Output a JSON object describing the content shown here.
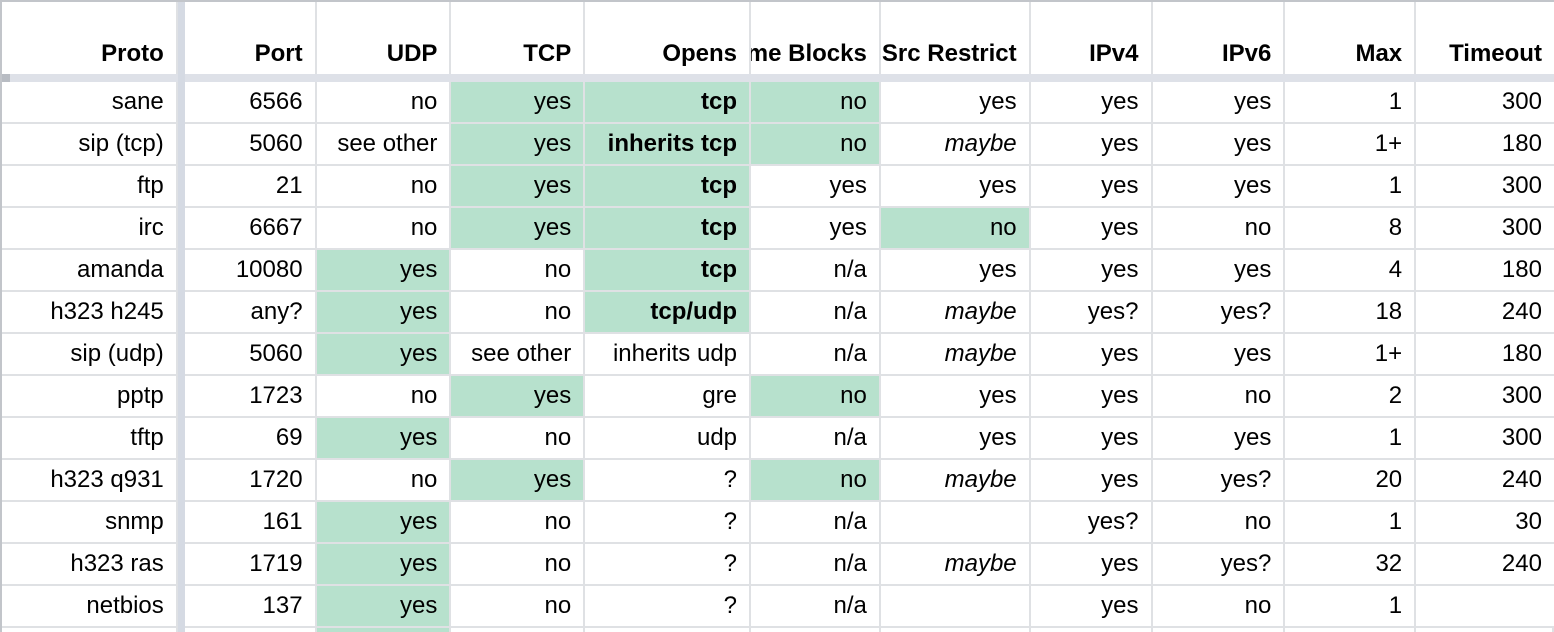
{
  "table": {
    "columns": [
      {
        "key": "proto",
        "label": "Proto"
      },
      {
        "key": "port",
        "label": "Port"
      },
      {
        "key": "udp",
        "label": "UDP"
      },
      {
        "key": "tcp",
        "label": "TCP"
      },
      {
        "key": "opens",
        "label": "Opens"
      },
      {
        "key": "chrome",
        "label": "Chrome Blocks"
      },
      {
        "key": "nfct",
        "label": "NFCT Src Restrict"
      },
      {
        "key": "ipv4",
        "label": "IPv4"
      },
      {
        "key": "ipv6",
        "label": "IPv6"
      },
      {
        "key": "max",
        "label": "Max"
      },
      {
        "key": "timeout",
        "label": "Timeout"
      }
    ],
    "rows": [
      {
        "cells": [
          {
            "t": "sane"
          },
          {
            "t": "6566"
          },
          {
            "t": "no"
          },
          {
            "t": "yes",
            "hl": true
          },
          {
            "t": "tcp",
            "hl": true,
            "b": true
          },
          {
            "t": "no",
            "hl": true
          },
          {
            "t": "yes"
          },
          {
            "t": "yes"
          },
          {
            "t": "yes"
          },
          {
            "t": "1"
          },
          {
            "t": "300"
          }
        ]
      },
      {
        "cells": [
          {
            "t": "sip (tcp)"
          },
          {
            "t": "5060"
          },
          {
            "t": "see other"
          },
          {
            "t": "yes",
            "hl": true
          },
          {
            "t": "inherits tcp",
            "hl": true,
            "b": true
          },
          {
            "t": "no",
            "hl": true
          },
          {
            "t": "maybe",
            "i": true
          },
          {
            "t": "yes"
          },
          {
            "t": "yes"
          },
          {
            "t": "1+"
          },
          {
            "t": "180"
          }
        ]
      },
      {
        "cells": [
          {
            "t": "ftp"
          },
          {
            "t": "21"
          },
          {
            "t": "no"
          },
          {
            "t": "yes",
            "hl": true
          },
          {
            "t": "tcp",
            "hl": true,
            "b": true
          },
          {
            "t": "yes"
          },
          {
            "t": "yes"
          },
          {
            "t": "yes"
          },
          {
            "t": "yes"
          },
          {
            "t": "1"
          },
          {
            "t": "300"
          }
        ]
      },
      {
        "cells": [
          {
            "t": "irc"
          },
          {
            "t": "6667"
          },
          {
            "t": "no"
          },
          {
            "t": "yes",
            "hl": true
          },
          {
            "t": "tcp",
            "hl": true,
            "b": true
          },
          {
            "t": "yes"
          },
          {
            "t": "no",
            "hl": true
          },
          {
            "t": "yes"
          },
          {
            "t": "no"
          },
          {
            "t": "8"
          },
          {
            "t": "300"
          }
        ]
      },
      {
        "cells": [
          {
            "t": "amanda"
          },
          {
            "t": "10080"
          },
          {
            "t": "yes",
            "hl": true
          },
          {
            "t": "no"
          },
          {
            "t": "tcp",
            "hl": true,
            "b": true
          },
          {
            "t": "n/a"
          },
          {
            "t": "yes"
          },
          {
            "t": "yes"
          },
          {
            "t": "yes"
          },
          {
            "t": "4"
          },
          {
            "t": "180"
          }
        ]
      },
      {
        "cells": [
          {
            "t": "h323 h245"
          },
          {
            "t": "any?"
          },
          {
            "t": "yes",
            "hl": true
          },
          {
            "t": "no"
          },
          {
            "t": "tcp/udp",
            "hl": true,
            "b": true
          },
          {
            "t": "n/a"
          },
          {
            "t": "maybe",
            "i": true
          },
          {
            "t": "yes?"
          },
          {
            "t": "yes?"
          },
          {
            "t": "18"
          },
          {
            "t": "240"
          }
        ]
      },
      {
        "cells": [
          {
            "t": "sip (udp)"
          },
          {
            "t": "5060"
          },
          {
            "t": "yes",
            "hl": true
          },
          {
            "t": "see other"
          },
          {
            "t": "inherits udp"
          },
          {
            "t": "n/a"
          },
          {
            "t": "maybe",
            "i": true
          },
          {
            "t": "yes"
          },
          {
            "t": "yes"
          },
          {
            "t": "1+"
          },
          {
            "t": "180"
          }
        ]
      },
      {
        "cells": [
          {
            "t": "pptp"
          },
          {
            "t": "1723"
          },
          {
            "t": "no"
          },
          {
            "t": "yes",
            "hl": true
          },
          {
            "t": "gre"
          },
          {
            "t": "no",
            "hl": true
          },
          {
            "t": "yes"
          },
          {
            "t": "yes"
          },
          {
            "t": "no"
          },
          {
            "t": "2"
          },
          {
            "t": "300"
          }
        ]
      },
      {
        "cells": [
          {
            "t": "tftp"
          },
          {
            "t": "69"
          },
          {
            "t": "yes",
            "hl": true
          },
          {
            "t": "no"
          },
          {
            "t": "udp"
          },
          {
            "t": "n/a"
          },
          {
            "t": "yes"
          },
          {
            "t": "yes"
          },
          {
            "t": "yes"
          },
          {
            "t": "1"
          },
          {
            "t": "300"
          }
        ]
      },
      {
        "cells": [
          {
            "t": "h323 q931"
          },
          {
            "t": "1720"
          },
          {
            "t": "no"
          },
          {
            "t": "yes",
            "hl": true
          },
          {
            "t": "?"
          },
          {
            "t": "no",
            "hl": true
          },
          {
            "t": "maybe",
            "i": true
          },
          {
            "t": "yes"
          },
          {
            "t": "yes?"
          },
          {
            "t": "20"
          },
          {
            "t": "240"
          }
        ]
      },
      {
        "cells": [
          {
            "t": "snmp"
          },
          {
            "t": "161"
          },
          {
            "t": "yes",
            "hl": true
          },
          {
            "t": "no"
          },
          {
            "t": "?"
          },
          {
            "t": "n/a"
          },
          {
            "t": ""
          },
          {
            "t": "yes?"
          },
          {
            "t": "no"
          },
          {
            "t": "1"
          },
          {
            "t": "30"
          }
        ]
      },
      {
        "cells": [
          {
            "t": "h323 ras"
          },
          {
            "t": "1719"
          },
          {
            "t": "yes",
            "hl": true
          },
          {
            "t": "no"
          },
          {
            "t": "?"
          },
          {
            "t": "n/a"
          },
          {
            "t": "maybe",
            "i": true
          },
          {
            "t": "yes"
          },
          {
            "t": "yes?"
          },
          {
            "t": "32"
          },
          {
            "t": "240"
          }
        ]
      },
      {
        "cells": [
          {
            "t": "netbios"
          },
          {
            "t": "137"
          },
          {
            "t": "yes",
            "hl": true
          },
          {
            "t": "no"
          },
          {
            "t": "?"
          },
          {
            "t": "n/a"
          },
          {
            "t": ""
          },
          {
            "t": "yes"
          },
          {
            "t": "no"
          },
          {
            "t": "1"
          },
          {
            "t": ""
          }
        ]
      }
    ],
    "partial_next_row": {
      "highlighted_columns": [
        "udp"
      ]
    },
    "colors": {
      "highlight": "#b7e1cd",
      "frozen_divider_horizontal": "#dee1e8",
      "frozen_divider_vertical": "#d5dae3",
      "gridline": "#dfe1e4",
      "outer_edge": "#c2c5ca"
    }
  }
}
